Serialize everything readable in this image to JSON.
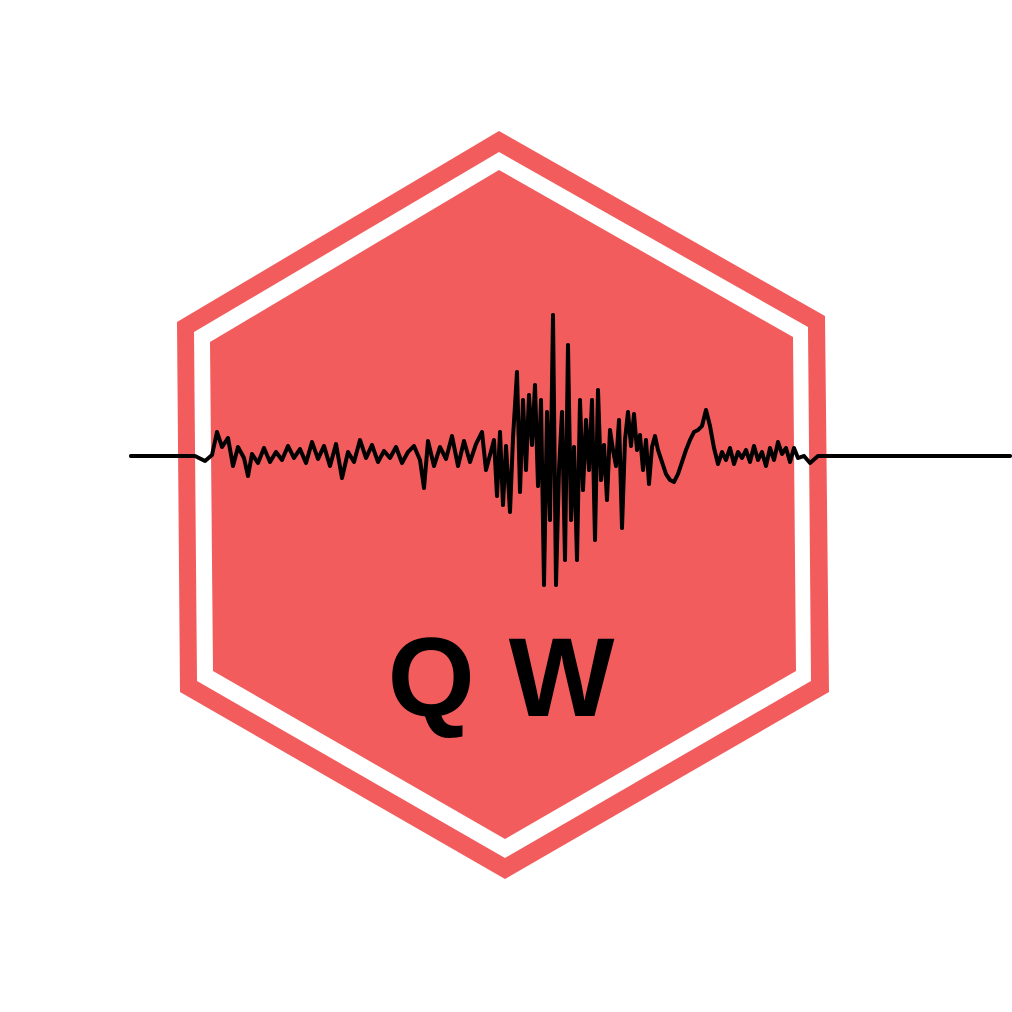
{
  "logo": {
    "text": "QW",
    "icon": "seismograph-waveform-icon",
    "colors": {
      "background": "#ffffff",
      "hexagon": "#f25c5c",
      "inner_ring": "#ffffff",
      "wave": "#000000",
      "text": "#000000"
    }
  }
}
